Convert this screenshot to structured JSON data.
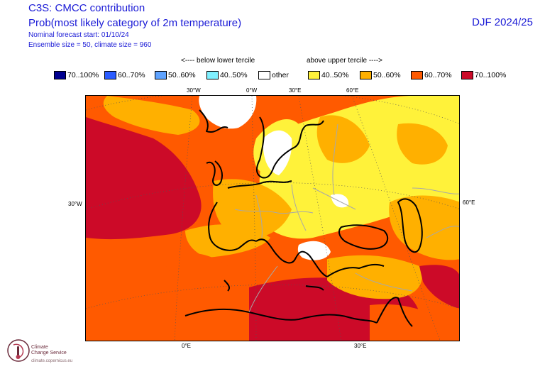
{
  "header": {
    "title": "C3S: CMCC contribution",
    "subtitle": "Prob(most likely category of 2m temperature)",
    "forecast_start": "Nominal forecast start: 01/10/24",
    "ensemble": "Ensemble size = 50, climate size = 960",
    "season": "DJF 2024/25"
  },
  "arrows": {
    "below": "<---- below lower tercile",
    "above": "above upper tercile ---->"
  },
  "legend": [
    {
      "label": "70..100%",
      "color": "#000090"
    },
    {
      "label": "60..70%",
      "color": "#2b5cff"
    },
    {
      "label": "50..60%",
      "color": "#5fa3ff"
    },
    {
      "label": "40..50%",
      "color": "#7ff0ff"
    },
    {
      "label": "other",
      "color": "#ffffff"
    },
    {
      "label": "40..50%",
      "color": "#fff23a"
    },
    {
      "label": "50..60%",
      "color": "#ffb000"
    },
    {
      "label": "60..70%",
      "color": "#ff5a00"
    },
    {
      "label": "70..100%",
      "color": "#cc0a28"
    }
  ],
  "axis_labels": {
    "top_30w": "30°W",
    "top_0w": "0°W",
    "top_30e": "30°E",
    "top_60e": "60°E",
    "left_30w": "30°W",
    "right_60e": "60°E",
    "bottom_0e": "0°E",
    "bottom_30e": "30°E"
  },
  "logo": {
    "name_line1": "Climate",
    "name_line2": "Change Service",
    "url": "climate.copernicus.eu",
    "color": "#6a2a3a"
  }
}
